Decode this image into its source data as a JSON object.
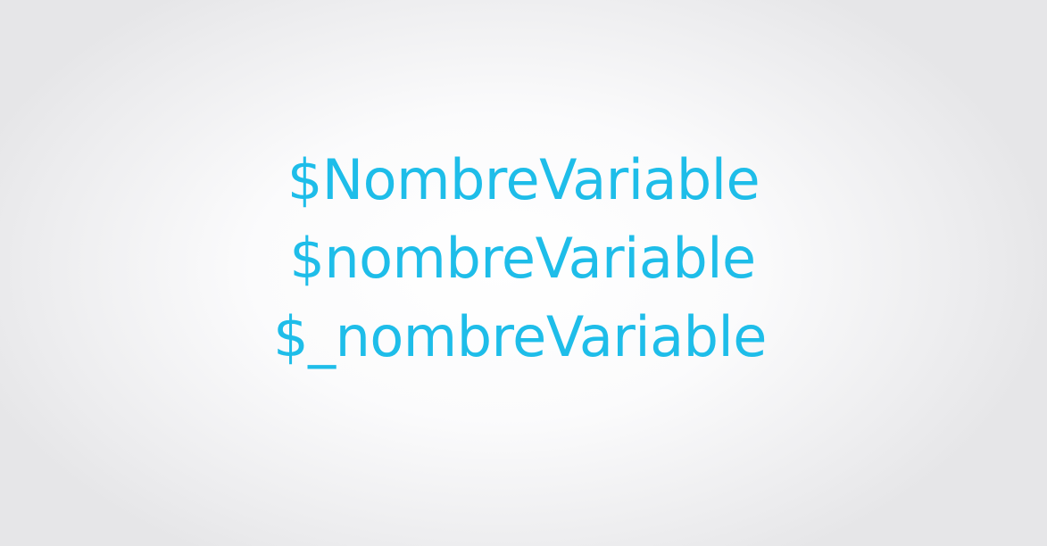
{
  "slide": {
    "lines": [
      "$NombreVariable",
      "$nombreVariable",
      "$_nombreVariable"
    ]
  },
  "colors": {
    "text": "#1ebde9",
    "background_center": "#ffffff",
    "background_edge": "#e6e6e8"
  }
}
